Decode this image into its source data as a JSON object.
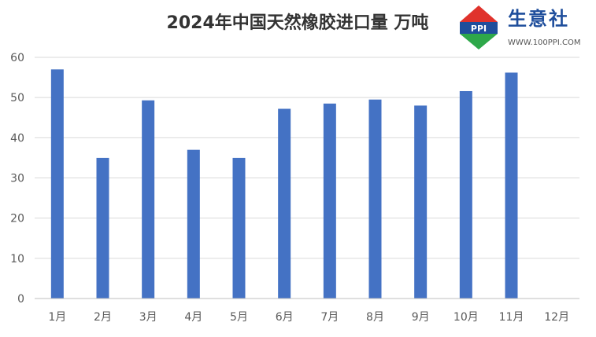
{
  "chart_data": {
    "type": "bar",
    "title": "2024年中国天然橡胶进口量 万吨",
    "categories": [
      "1月",
      "2月",
      "3月",
      "4月",
      "5月",
      "6月",
      "7月",
      "8月",
      "9月",
      "10月",
      "11月",
      "12月"
    ],
    "values": [
      57,
      35,
      49.3,
      37,
      35,
      47.2,
      48.5,
      49.5,
      48,
      51.6,
      56.2,
      null
    ],
    "ylim": [
      0,
      60
    ],
    "yticks": [
      0,
      10,
      20,
      30,
      40,
      50,
      60
    ],
    "grid": true,
    "bar_color": "#4472C4"
  },
  "logo": {
    "name": "生意社",
    "mark": "PPI",
    "url": "WWW.100PPI.COM",
    "color_red": "#E0322C",
    "color_green": "#2EA84A",
    "color_blue": "#1F4E9C"
  }
}
